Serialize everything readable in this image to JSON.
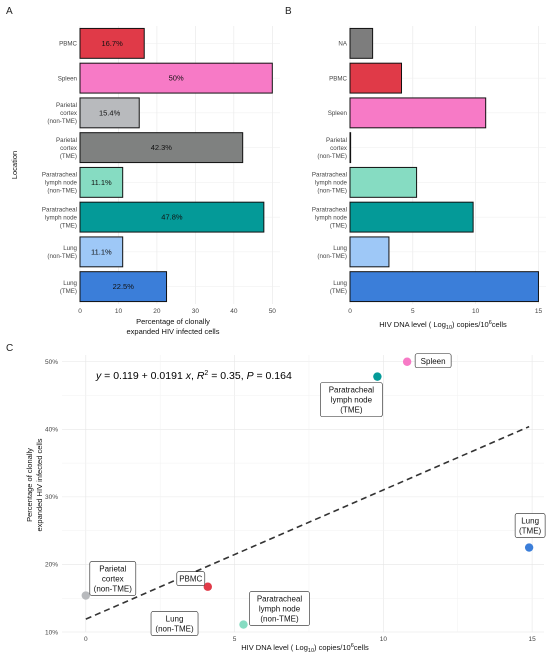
{
  "colors": {
    "PBMC": "#e03a48",
    "Spleen": "#f77ac6",
    "Parietal cortex (non-TME)": "#b8babd",
    "Parietal cortex (TME)": "#7f8180",
    "Paratracheal lymph node (non-TME)": "#86dcc2",
    "Paratracheal lymph node (TME)": "#049a98",
    "Lung (non-TME)": "#9ec8f7",
    "Lung (TME)": "#3b7ed9",
    "NA": "#7d7d7d"
  },
  "chart_data": [
    {
      "panel": "A",
      "type": "bar",
      "orientation": "horizontal",
      "categories": [
        [
          "PBMC"
        ],
        [
          "Spleen"
        ],
        [
          "Parietal",
          "cortex",
          "(non-TME)"
        ],
        [
          "Parietal",
          "cortex",
          "(TME)"
        ],
        [
          "Paratracheal",
          "lymph node",
          "(non-TME)"
        ],
        [
          "Paratracheal",
          "lymph node",
          "(TME)"
        ],
        [
          "Lung",
          "(non-TME)"
        ],
        [
          "Lung",
          "(TME)"
        ]
      ],
      "color_keys": [
        "PBMC",
        "Spleen",
        "Parietal cortex (non-TME)",
        "Parietal cortex (TME)",
        "Paratracheal lymph node (non-TME)",
        "Paratracheal lymph node (TME)",
        "Lung (non-TME)",
        "Lung (TME)"
      ],
      "values": [
        16.7,
        50,
        15.4,
        42.3,
        11.1,
        47.8,
        11.1,
        22.5
      ],
      "value_labels": [
        "16.7%",
        "50%",
        "15.4%",
        "42.3%",
        "11.1%",
        "47.8%",
        "11.1%",
        "22.5%"
      ],
      "xlim": [
        0,
        52
      ],
      "xticks": [
        0,
        10,
        20,
        30,
        40,
        50
      ],
      "xlabel": [
        "Percentage of clonally",
        "expanded HIV infected cells"
      ],
      "ylabel": "Location"
    },
    {
      "panel": "B",
      "type": "bar",
      "orientation": "horizontal",
      "categories": [
        [
          "NA"
        ],
        [
          "PBMC"
        ],
        [
          "Spleen"
        ],
        [
          "Parietal",
          "cortex",
          "(non-TME)"
        ],
        [
          "Paratracheal",
          "lymph node",
          "(non-TME)"
        ],
        [
          "Paratracheal",
          "lymph node",
          "(TME)"
        ],
        [
          "Lung",
          "(non-TME)"
        ],
        [
          "Lung",
          "(TME)"
        ]
      ],
      "color_keys": [
        "NA",
        "PBMC",
        "Spleen",
        "Parietal cortex (non-TME)",
        "Paratracheal lymph node (non-TME)",
        "Paratracheal lymph node (TME)",
        "Lung (non-TME)",
        "Lung (TME)"
      ],
      "values": [
        1.8,
        4.1,
        10.8,
        0.05,
        5.3,
        9.8,
        3.1,
        15.0
      ],
      "xlim": [
        0,
        15.6
      ],
      "xticks": [
        0,
        5,
        10,
        15
      ],
      "xlabel": "HIV DNA level ( Log10) copies/10^6cells",
      "ylabel": ""
    },
    {
      "panel": "C",
      "type": "scatter",
      "equation": "y = 0.119 + 0.0191 x, R^2 = 0.35, P = 0.164",
      "points": [
        {
          "label": "Spleen",
          "label_lines": [
            "Spleen"
          ],
          "color_key": "Spleen",
          "x": 10.8,
          "y": 50.0
        },
        {
          "label": "Paratracheal lymph node (TME)",
          "label_lines": [
            "Paratracheal",
            "lymph node",
            "(TME)"
          ],
          "color_key": "Paratracheal lymph node (TME)",
          "x": 9.8,
          "y": 47.8
        },
        {
          "label": "Lung (TME)",
          "label_lines": [
            "Lung",
            "(TME)"
          ],
          "color_key": "Lung (TME)",
          "x": 14.9,
          "y": 22.5
        },
        {
          "label": "Parietal cortex (non-TME)",
          "label_lines": [
            "Parietal",
            "cortex",
            "(non-TME)"
          ],
          "color_key": "Parietal cortex (non-TME)",
          "x": 0.0,
          "y": 15.4
        },
        {
          "label": "PBMC",
          "label_lines": [
            "PBMC"
          ],
          "color_key": "PBMC",
          "x": 4.1,
          "y": 16.7
        },
        {
          "label": "Lung (non-TME)",
          "label_lines": [
            "Lung",
            "(non-TME)"
          ],
          "color_key": "Lung (non-TME)",
          "x": 3.1,
          "y": 11.1
        },
        {
          "label": "Paratracheal lymph node (non-TME)",
          "label_lines": [
            "Paratracheal",
            "lymph node",
            "(non-TME)"
          ],
          "color_key": "Paratracheal lymph node (non-TME)",
          "x": 5.3,
          "y": 11.1
        }
      ],
      "fit_line": {
        "x": [
          0,
          14.9
        ],
        "y": [
          11.9,
          40.4
        ]
      },
      "xlim": [
        -0.8,
        15.4
      ],
      "ylim": [
        10,
        51
      ],
      "xticks": [
        0,
        5,
        10,
        15
      ],
      "yticks": [
        10,
        20,
        30,
        40,
        50
      ],
      "ytick_labels": [
        "10%",
        "20%",
        "30%",
        "40%",
        "50%"
      ],
      "xlabel": "HIV DNA level ( Log10) copies/10^6cells",
      "ylabel": [
        "Percentage of clonally",
        "expanded HIV infected cells"
      ]
    }
  ],
  "panel_letters": [
    "A",
    "B",
    "C"
  ]
}
